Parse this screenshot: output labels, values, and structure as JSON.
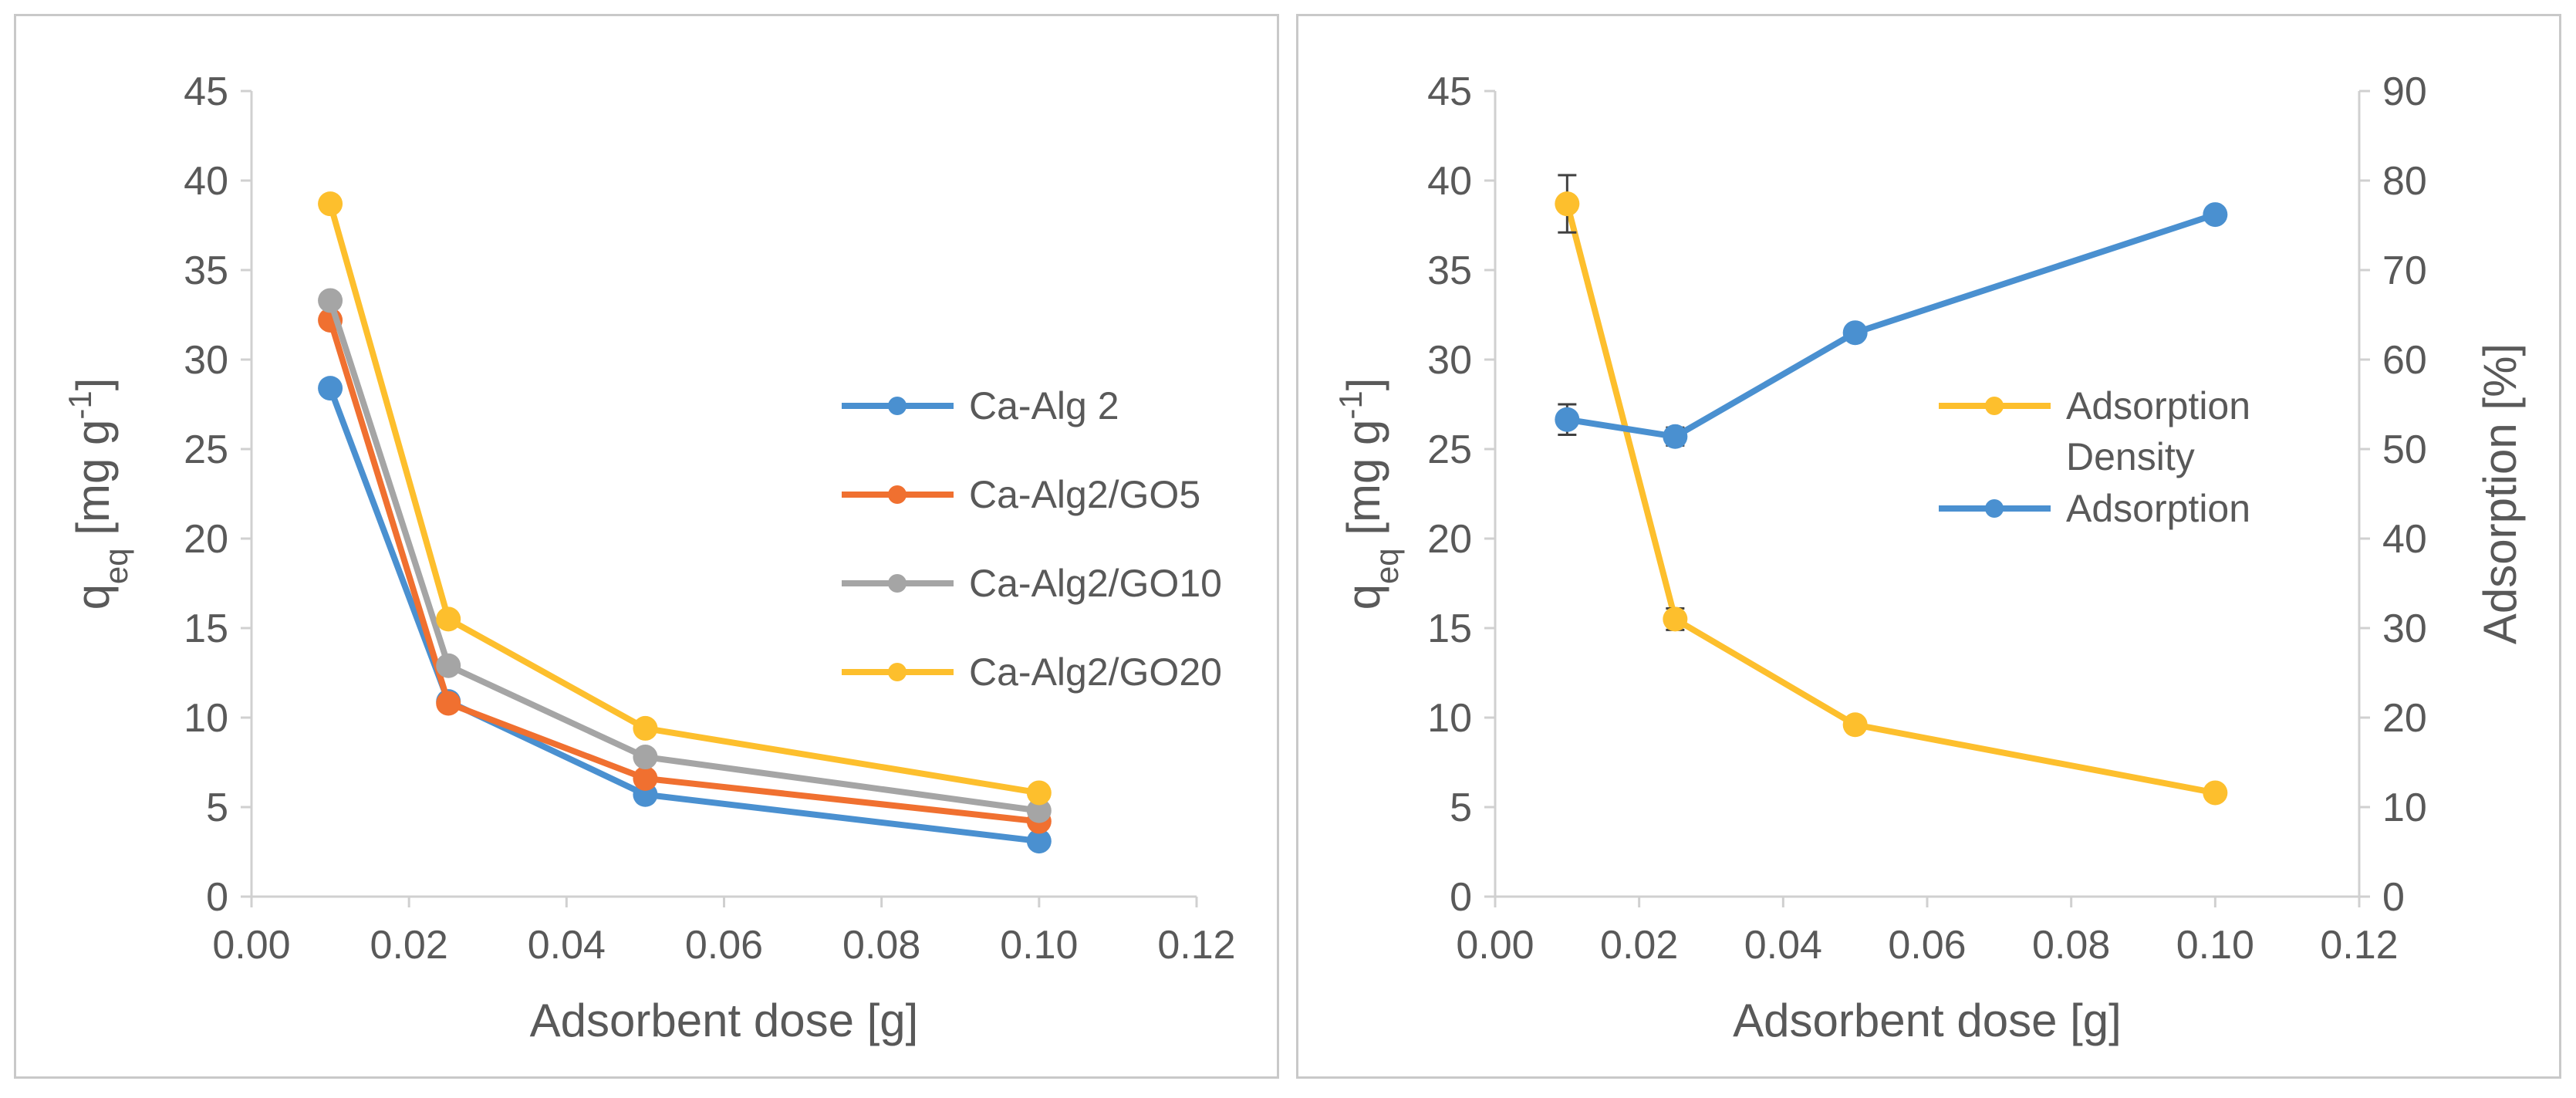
{
  "chart_data": [
    {
      "type": "line",
      "title": "",
      "xlabel": "Adsorbent dose [g]",
      "ylabel_main": "q",
      "ylabel_sub": "eq",
      "ylabel_unit": " [mg g",
      "ylabel_sup": "-1",
      "ylabel_close": "]",
      "xlim": [
        0,
        0.12
      ],
      "ylim": [
        0,
        45
      ],
      "xticks": [
        "0.00",
        "0.02",
        "0.04",
        "0.06",
        "0.08",
        "0.10",
        "0.12"
      ],
      "yticks": [
        "0",
        "5",
        "10",
        "15",
        "20",
        "25",
        "30",
        "35",
        "40",
        "45"
      ],
      "x": [
        0.01,
        0.025,
        0.05,
        0.1
      ],
      "legend_position": "right",
      "series": [
        {
          "name": "Ca-Alg 2",
          "color": "#4a90d0",
          "values": [
            28.4,
            10.9,
            5.7,
            3.1
          ]
        },
        {
          "name": "Ca-Alg2/GO5",
          "color": "#f07030",
          "values": [
            32.2,
            10.8,
            6.6,
            4.2
          ]
        },
        {
          "name": "Ca-Alg2/GO10",
          "color": "#a5a5a5",
          "values": [
            33.3,
            12.9,
            7.8,
            4.8
          ]
        },
        {
          "name": "Ca-Alg2/GO20",
          "color": "#fdbf2d",
          "values": [
            38.7,
            15.5,
            9.4,
            5.8
          ]
        }
      ]
    },
    {
      "type": "line",
      "title": "",
      "xlabel": "Adsorbent dose [g]",
      "ylabel_main": "q",
      "ylabel_sub": "eq",
      "ylabel_unit": " [mg g",
      "ylabel_sup": "-1",
      "ylabel_close": "]",
      "y2label": "Adsorption [%]",
      "xlim": [
        0,
        0.12
      ],
      "ylim": [
        0,
        45
      ],
      "y2lim": [
        0,
        90
      ],
      "xticks": [
        "0.00",
        "0.02",
        "0.04",
        "0.06",
        "0.08",
        "0.10",
        "0.12"
      ],
      "yticks": [
        "0",
        "5",
        "10",
        "15",
        "20",
        "25",
        "30",
        "35",
        "40",
        "45"
      ],
      "y2ticks": [
        "0",
        "10",
        "20",
        "30",
        "40",
        "50",
        "60",
        "70",
        "80",
        "90"
      ],
      "x": [
        0.01,
        0.025,
        0.05,
        0.1
      ],
      "legend_position": "right",
      "series": [
        {
          "name": "Adsorption Density",
          "legend_lines": [
            "Adsorption",
            "Density"
          ],
          "axis": "left",
          "color": "#fdbf2d",
          "values": [
            38.7,
            15.5,
            9.6,
            5.8
          ],
          "errors": [
            1.6,
            0.6,
            0,
            0
          ]
        },
        {
          "name": "Adsorption",
          "legend_lines": [
            "Adsorption"
          ],
          "axis": "right",
          "color": "#4a90d0",
          "values": [
            53.3,
            51.4,
            63.0,
            76.2
          ],
          "errors": [
            1.7,
            1.0,
            0,
            0
          ]
        }
      ]
    }
  ]
}
